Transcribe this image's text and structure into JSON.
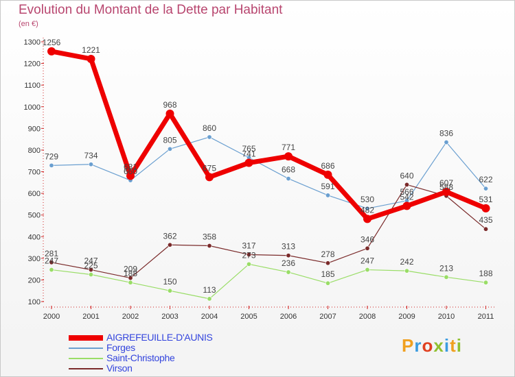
{
  "title": "Evolution du Montant de la Dette par Habitant",
  "subtitle": "(en €)",
  "logo": {
    "text": "Proxiti",
    "colors": [
      "#f0a020",
      "#3a9be0",
      "#e04020",
      "#90c030",
      "#3a9be0",
      "#f0a020",
      "#90c030"
    ]
  },
  "chart_data": {
    "type": "line",
    "title": "Evolution du Montant de la Dette par Habitant",
    "subtitle": "(en €)",
    "categories": [
      "2000",
      "2001",
      "2002",
      "2003",
      "2004",
      "2005",
      "2006",
      "2007",
      "2008",
      "2009",
      "2010",
      "2011"
    ],
    "ylim": [
      100,
      1300
    ],
    "yticks": [
      100,
      200,
      300,
      400,
      500,
      600,
      700,
      800,
      900,
      1000,
      1100,
      1200,
      1300
    ],
    "grid": false,
    "legend_position": "bottom-left",
    "series": [
      {
        "name": "AIGREFEUILLE-D'AUNIS",
        "color": "#ee0000",
        "width": 7,
        "values": [
          1256,
          1221,
          681,
          968,
          675,
          741,
          771,
          686,
          482,
          542,
          607,
          531
        ],
        "labels": [
          "1256",
          "1221",
          "681",
          "968",
          "675",
          "741",
          "771",
          "686",
          "482",
          "542",
          "607",
          "531"
        ]
      },
      {
        "name": "Forges",
        "color": "#6a9fd0",
        "width": 1.2,
        "values": [
          729,
          734,
          660,
          805,
          860,
          765,
          668,
          591,
          530,
          566,
          836,
          622
        ],
        "labels": [
          "729",
          "734",
          "660",
          "805",
          "860",
          "765",
          "668",
          "591",
          "530",
          "566",
          "836",
          "622"
        ]
      },
      {
        "name": "Saint-Christophe",
        "color": "#99dd66",
        "width": 1.2,
        "values": [
          247,
          225,
          188,
          150,
          113,
          273,
          236,
          185,
          247,
          242,
          213,
          188
        ],
        "labels": [
          "247",
          "225",
          "188",
          "150",
          "113",
          "273",
          "236",
          "185",
          "247",
          "242",
          "213",
          "188"
        ]
      },
      {
        "name": "Virson",
        "color": "#7a2a2a",
        "width": 1.2,
        "values": [
          281,
          247,
          209,
          362,
          358,
          317,
          313,
          278,
          346,
          640,
          588,
          435
        ],
        "labels": [
          "281",
          "247",
          "209",
          "362",
          "358",
          "317",
          "313",
          "278",
          "346",
          "640",
          "588",
          "435"
        ]
      }
    ]
  }
}
